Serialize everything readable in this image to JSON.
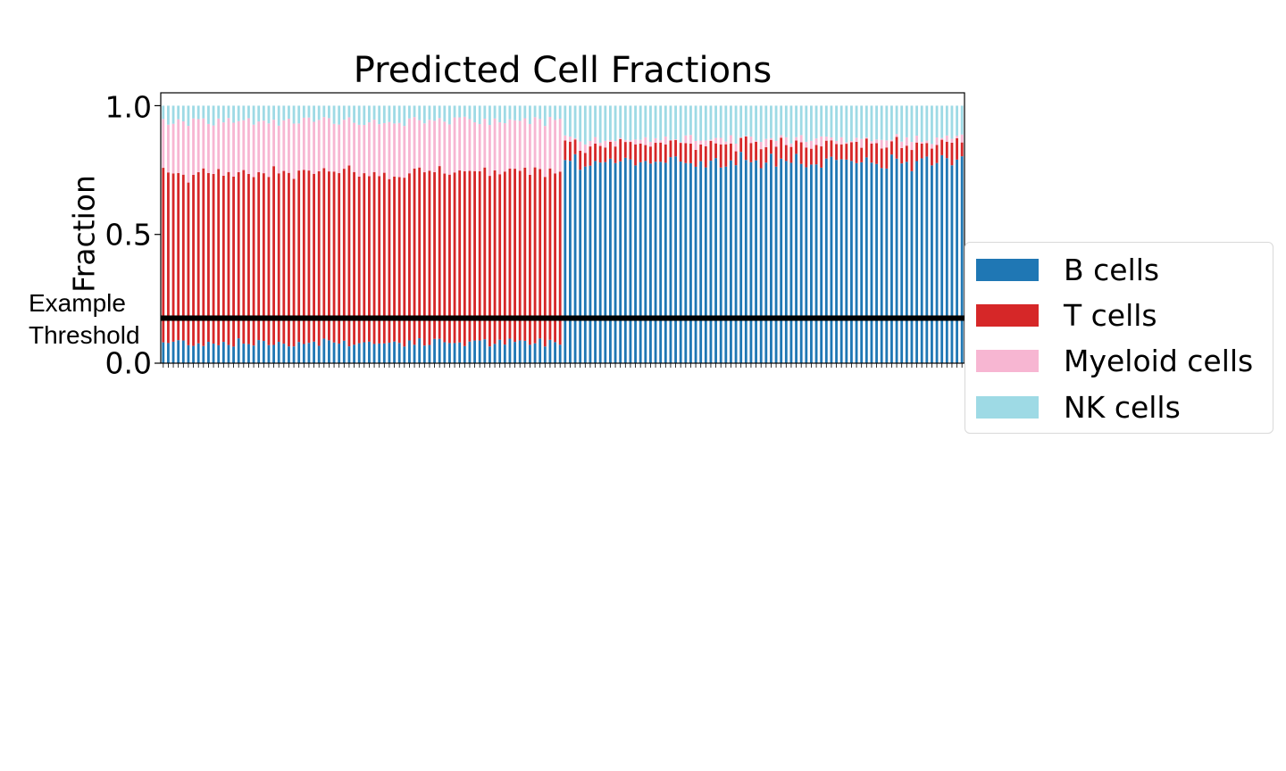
{
  "chart_data": {
    "type": "bar",
    "stacked": true,
    "title": "Predicted Cell Fractions",
    "xlabel": "",
    "ylabel": "Fraction",
    "ylim": [
      0,
      1.05
    ],
    "yticks": [
      "0.0",
      "0.5",
      "1.0"
    ],
    "x_tick_labels_shown": false,
    "legend_position": "outside-right",
    "n_samples": 160,
    "groups": [
      {
        "count": 80,
        "dominant": "T cells",
        "approx_fractions": {
          "B cells": 0.08,
          "T cells": 0.66,
          "Myeloid cells": 0.2,
          "NK cells": 0.06
        }
      },
      {
        "count": 80,
        "dominant": "B cells",
        "approx_fractions": {
          "B cells": 0.78,
          "T cells": 0.07,
          "Myeloid cells": 0.02,
          "NK cells": 0.13
        }
      }
    ],
    "series": [
      {
        "name": "B cells",
        "color": "#1f77b4"
      },
      {
        "name": "T cells",
        "color": "#d62728"
      },
      {
        "name": "Myeloid cells",
        "color": "#f7b6d2"
      },
      {
        "name": "NK cells",
        "color": "#9edae5"
      }
    ],
    "threshold": {
      "label": "Example\nThreshold",
      "value": 0.175,
      "color": "#000000"
    }
  },
  "annotation": {
    "line1": "Example",
    "line2": "Threshold"
  },
  "legend": {
    "items": [
      {
        "label": "B cells",
        "color": "#1f77b4"
      },
      {
        "label": "T cells",
        "color": "#d62728"
      },
      {
        "label": "Myeloid cells",
        "color": "#f7b6d2"
      },
      {
        "label": "NK cells",
        "color": "#9edae5"
      }
    ]
  }
}
